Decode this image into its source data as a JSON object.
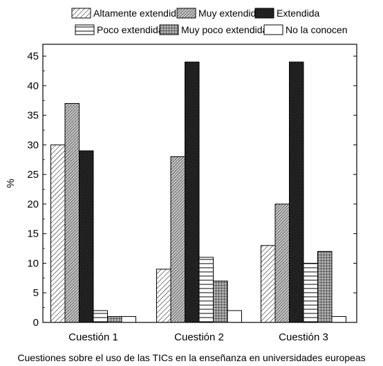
{
  "chart_data": {
    "type": "bar",
    "categories": [
      "Cuestión 1",
      "Cuestión 2",
      "Cuestión 3"
    ],
    "series": [
      {
        "name": "Altamente extendida",
        "values": [
          30,
          9,
          13
        ],
        "pattern": "light-diagonal"
      },
      {
        "name": "Muy extendida",
        "values": [
          37,
          28,
          20
        ],
        "pattern": "dense-diagonal"
      },
      {
        "name": "Extendida",
        "values": [
          29,
          44,
          44
        ],
        "pattern": "dark-diagonal"
      },
      {
        "name": "Poco extendida",
        "values": [
          2,
          11,
          10
        ],
        "pattern": "horizontal-lines"
      },
      {
        "name": "Muy poco extendida",
        "values": [
          1,
          7,
          12
        ],
        "pattern": "grid"
      },
      {
        "name": "No la conocen",
        "values": [
          1,
          2,
          1
        ],
        "pattern": "empty"
      }
    ],
    "xlabel": "Cuestiones sobre el uso de las TICs en la enseñanza en universidades europeas",
    "ylabel": "%",
    "ylim": [
      0,
      47
    ],
    "yticks": [
      0,
      5,
      10,
      15,
      20,
      25,
      30,
      35,
      40,
      45
    ],
    "legend_position": "top",
    "grid": false,
    "colors": {
      "bar_stroke": "#000000",
      "dark_fill": "#2a2a2a",
      "background": "#ffffff"
    }
  }
}
